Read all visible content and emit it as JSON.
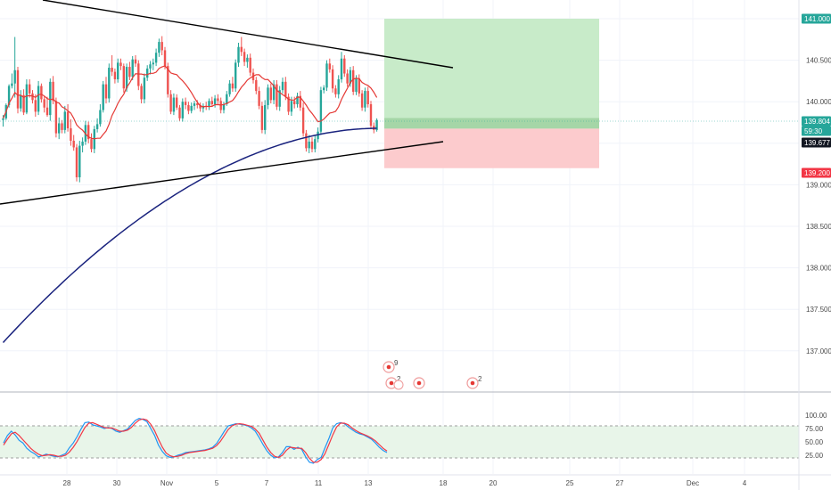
{
  "chart_data": [
    {
      "type": "candlestick",
      "title": "",
      "xlabel": "",
      "ylabel": "",
      "ylim": [
        136.7,
        141.15
      ],
      "grid": true,
      "x_tick_labels": [
        "28",
        "30",
        "Nov",
        "5",
        "7",
        "11",
        "13",
        "18",
        "20",
        "25",
        "27",
        "Dec",
        "4"
      ],
      "y_tick_labels": [
        "137.000",
        "137.500",
        "138.000",
        "138.500",
        "139.000",
        "139.500",
        "140.000",
        "140.500",
        "141.000"
      ],
      "y_ticks": [
        137.0,
        137.5,
        138.0,
        138.5,
        139.0,
        139.5,
        140.0,
        140.5,
        141.0
      ],
      "price_badges": [
        {
          "label": "141.000",
          "value": 141.0,
          "color": "#26a69a"
        },
        {
          "label": "139.804",
          "value": 139.804,
          "color": "#26a69a"
        },
        {
          "label": "59:30",
          "value": 139.73,
          "color": "#26a69a"
        },
        {
          "label": "139.677",
          "value": 139.677,
          "color": "#131722"
        },
        {
          "label": "139.200",
          "value": 139.2,
          "color": "#f23645"
        }
      ],
      "position_tool": {
        "entry": 139.677,
        "take_profit": 141.0,
        "stop_loss": 139.2,
        "profit_color": "#c8ebc9",
        "loss_color": "#fccbcd",
        "current_fill_color": "#a5d6a7"
      },
      "candles_hourly_ohlc": [
        [
          139.78,
          139.84,
          139.7,
          139.8
        ],
        [
          139.8,
          139.98,
          139.78,
          139.96
        ],
        [
          139.96,
          140.21,
          139.93,
          140.19
        ],
        [
          140.19,
          140.34,
          140.16,
          140.22
        ],
        [
          140.22,
          140.78,
          140.05,
          140.38
        ],
        [
          140.38,
          140.42,
          139.86,
          139.92
        ],
        [
          139.92,
          140.14,
          139.88,
          140.08
        ],
        [
          140.08,
          140.15,
          139.84,
          139.87
        ],
        [
          139.87,
          140.27,
          139.85,
          140.21
        ],
        [
          140.21,
          140.27,
          140.05,
          140.1
        ],
        [
          140.1,
          140.14,
          139.98,
          140.02
        ],
        [
          140.02,
          140.09,
          139.82,
          139.88
        ],
        [
          139.88,
          140.25,
          139.84,
          140.19
        ],
        [
          140.19,
          140.22,
          139.99,
          140.03
        ],
        [
          140.03,
          140.07,
          139.87,
          139.93
        ],
        [
          139.93,
          140.06,
          139.82,
          139.84
        ],
        [
          139.84,
          140.28,
          139.77,
          140.24
        ],
        [
          140.24,
          140.31,
          139.97,
          140.01
        ],
        [
          140.01,
          140.05,
          139.57,
          139.62
        ],
        [
          139.62,
          139.81,
          139.55,
          139.74
        ],
        [
          139.74,
          139.78,
          139.62,
          139.66
        ],
        [
          139.66,
          139.95,
          139.62,
          139.88
        ],
        [
          139.88,
          139.97,
          139.64,
          139.68
        ],
        [
          139.68,
          139.79,
          139.47,
          139.53
        ],
        [
          139.53,
          139.6,
          139.41,
          139.45
        ],
        [
          139.45,
          139.49,
          139.04,
          139.09
        ],
        [
          139.09,
          139.53,
          139.03,
          139.47
        ],
        [
          139.47,
          139.57,
          139.39,
          139.52
        ],
        [
          139.52,
          139.77,
          139.48,
          139.72
        ],
        [
          139.72,
          139.76,
          139.5,
          139.55
        ],
        [
          139.55,
          139.62,
          139.39,
          139.43
        ],
        [
          139.43,
          139.71,
          139.38,
          139.67
        ],
        [
          139.67,
          139.8,
          139.63,
          139.73
        ],
        [
          139.73,
          139.97,
          139.7,
          139.9
        ],
        [
          139.9,
          140.25,
          139.87,
          140.21
        ],
        [
          140.21,
          140.3,
          139.98,
          140.04
        ],
        [
          140.04,
          140.46,
          139.99,
          140.41
        ],
        [
          140.41,
          140.56,
          140.31,
          140.36
        ],
        [
          140.36,
          140.4,
          140.22,
          140.27
        ],
        [
          140.27,
          140.52,
          140.23,
          140.47
        ],
        [
          140.47,
          140.52,
          140.38,
          140.43
        ],
        [
          140.43,
          140.46,
          140.11,
          140.16
        ],
        [
          140.16,
          140.46,
          140.12,
          140.42
        ],
        [
          140.42,
          140.48,
          140.26,
          140.3
        ],
        [
          140.3,
          140.55,
          140.26,
          140.51
        ],
        [
          140.51,
          140.56,
          140.42,
          140.46
        ],
        [
          140.46,
          140.5,
          140.14,
          140.19
        ],
        [
          140.19,
          140.22,
          139.98,
          140.03
        ],
        [
          140.03,
          140.34,
          139.98,
          140.29
        ],
        [
          140.29,
          140.44,
          140.25,
          140.4
        ],
        [
          140.4,
          140.49,
          140.33,
          140.45
        ],
        [
          140.45,
          140.52,
          140.38,
          140.47
        ],
        [
          140.47,
          140.64,
          140.43,
          140.59
        ],
        [
          140.59,
          140.76,
          140.54,
          140.72
        ],
        [
          140.72,
          140.79,
          140.56,
          140.62
        ],
        [
          140.62,
          140.66,
          140.39,
          140.43
        ],
        [
          140.43,
          140.47,
          140.05,
          140.09
        ],
        [
          140.09,
          140.14,
          139.85,
          139.88
        ],
        [
          139.88,
          140.1,
          139.84,
          140.05
        ],
        [
          140.05,
          140.09,
          139.9,
          139.93
        ],
        [
          139.93,
          139.96,
          139.77,
          139.8
        ],
        [
          139.8,
          140.04,
          139.76,
          140.0
        ],
        [
          140.0,
          140.05,
          139.91,
          139.96
        ],
        [
          139.96,
          140.0,
          139.85,
          139.89
        ],
        [
          139.89,
          139.99,
          139.86,
          139.95
        ],
        [
          139.95,
          140.01,
          139.9,
          139.98
        ],
        [
          139.98,
          140.02,
          139.92,
          139.96
        ],
        [
          139.96,
          139.99,
          139.88,
          139.92
        ],
        [
          139.92,
          139.98,
          139.87,
          139.95
        ],
        [
          139.95,
          140.0,
          139.9,
          139.94
        ],
        [
          139.94,
          140.04,
          139.9,
          140.01
        ],
        [
          140.01,
          140.06,
          139.94,
          139.97
        ],
        [
          139.97,
          140.08,
          139.93,
          140.04
        ],
        [
          140.04,
          140.09,
          139.97,
          140.01
        ],
        [
          140.01,
          140.05,
          139.86,
          139.9
        ],
        [
          139.9,
          140.0,
          139.86,
          139.97
        ],
        [
          139.97,
          140.13,
          139.95,
          140.09
        ],
        [
          140.09,
          140.26,
          140.06,
          140.22
        ],
        [
          140.22,
          140.3,
          140.12,
          140.16
        ],
        [
          140.16,
          140.51,
          140.12,
          140.47
        ],
        [
          140.47,
          140.71,
          140.42,
          140.66
        ],
        [
          140.66,
          140.78,
          140.55,
          140.6
        ],
        [
          140.6,
          140.64,
          140.43,
          140.48
        ],
        [
          140.48,
          140.57,
          140.41,
          140.53
        ],
        [
          140.53,
          140.58,
          140.31,
          140.35
        ],
        [
          140.35,
          140.4,
          140.22,
          140.26
        ],
        [
          140.26,
          140.3,
          140.09,
          140.13
        ],
        [
          140.13,
          140.18,
          139.91,
          139.95
        ],
        [
          139.95,
          140.0,
          139.62,
          139.66
        ],
        [
          139.66,
          140.02,
          139.61,
          139.96
        ],
        [
          139.96,
          140.21,
          139.91,
          140.17
        ],
        [
          140.17,
          140.22,
          139.98,
          140.02
        ],
        [
          140.02,
          140.26,
          139.97,
          140.21
        ],
        [
          140.21,
          140.26,
          139.9,
          139.94
        ],
        [
          139.94,
          140.19,
          139.89,
          140.14
        ],
        [
          140.14,
          140.29,
          140.1,
          140.24
        ],
        [
          140.24,
          140.3,
          140.02,
          140.06
        ],
        [
          140.06,
          140.1,
          139.84,
          139.88
        ],
        [
          139.88,
          140.06,
          139.83,
          140.01
        ],
        [
          140.01,
          140.06,
          139.92,
          139.97
        ],
        [
          139.97,
          140.11,
          139.93,
          140.07
        ],
        [
          140.07,
          140.13,
          139.89,
          139.93
        ],
        [
          139.93,
          139.99,
          139.58,
          139.62
        ],
        [
          139.62,
          139.66,
          139.4,
          139.44
        ],
        [
          139.44,
          139.6,
          139.38,
          139.52
        ],
        [
          139.52,
          139.57,
          139.39,
          139.43
        ],
        [
          139.43,
          139.59,
          139.39,
          139.55
        ],
        [
          139.55,
          139.69,
          139.51,
          139.64
        ],
        [
          139.64,
          140.18,
          139.6,
          140.14
        ],
        [
          140.14,
          140.2,
          140.1,
          140.17
        ],
        [
          140.17,
          140.5,
          140.13,
          140.46
        ],
        [
          140.46,
          140.52,
          140.35,
          140.39
        ],
        [
          140.39,
          140.44,
          140.11,
          140.16
        ],
        [
          140.16,
          140.2,
          140.05,
          140.09
        ],
        [
          140.09,
          140.32,
          140.04,
          140.27
        ],
        [
          140.27,
          140.6,
          140.23,
          140.52
        ],
        [
          140.52,
          140.56,
          140.3,
          140.34
        ],
        [
          140.34,
          140.39,
          140.18,
          140.22
        ],
        [
          140.22,
          140.42,
          140.18,
          140.38
        ],
        [
          140.38,
          140.43,
          140.08,
          140.12
        ],
        [
          140.12,
          140.32,
          140.08,
          140.28
        ],
        [
          140.28,
          140.33,
          140.06,
          140.1
        ],
        [
          140.1,
          140.14,
          139.89,
          139.93
        ],
        [
          139.93,
          140.17,
          139.88,
          140.13
        ],
        [
          140.13,
          140.18,
          139.93,
          139.97
        ],
        [
          139.97,
          140.01,
          139.67,
          139.71
        ],
        [
          139.71,
          139.75,
          139.62,
          139.66
        ],
        [
          139.66,
          139.8,
          139.64,
          139.78
        ]
      ]
    },
    {
      "type": "line",
      "title": "",
      "ylim": [
        0,
        100
      ],
      "y_tick_labels": [
        "25.00",
        "50.00",
        "75.00",
        "100.00"
      ],
      "y_ticks": [
        25,
        50,
        75,
        100
      ],
      "band": [
        20,
        80
      ],
      "band_color": "#e8f5e9",
      "series": [
        {
          "color": "#2196f3",
          "values": [
            48,
            62,
            70,
            63,
            53,
            48,
            38,
            32,
            28,
            22,
            24,
            27,
            25,
            23,
            22,
            25,
            28,
            39,
            48,
            60,
            74,
            86,
            87,
            82,
            80,
            78,
            75,
            77,
            75,
            70,
            68,
            71,
            74,
            82,
            90,
            94,
            92,
            88,
            75,
            62,
            44,
            32,
            24,
            21,
            22,
            25,
            27,
            30,
            31,
            32,
            33,
            34,
            35,
            37,
            40,
            47,
            58,
            70,
            80,
            82,
            84,
            83,
            82,
            80,
            76,
            70,
            58,
            45,
            33,
            25,
            20,
            22,
            30,
            41,
            41,
            36,
            40,
            36,
            22,
            12,
            10,
            17,
            21,
            39,
            56,
            76,
            84,
            86,
            84,
            78,
            73,
            68,
            65,
            63,
            59,
            55,
            48,
            40,
            34,
            30
          ]
        },
        {
          "color": "#f23645",
          "values": [
            44,
            55,
            65,
            68,
            62,
            54,
            46,
            38,
            32,
            27,
            24,
            25,
            26,
            25,
            23,
            23,
            25,
            31,
            40,
            51,
            64,
            77,
            85,
            86,
            83,
            80,
            77,
            76,
            76,
            73,
            70,
            70,
            72,
            77,
            85,
            91,
            93,
            91,
            83,
            71,
            55,
            40,
            29,
            24,
            22,
            23,
            25,
            28,
            30,
            31,
            32,
            33,
            34,
            36,
            38,
            43,
            51,
            62,
            73,
            80,
            83,
            84,
            83,
            81,
            79,
            74,
            66,
            53,
            40,
            30,
            23,
            21,
            25,
            34,
            40,
            39,
            38,
            38,
            30,
            19,
            12,
            12,
            17,
            28,
            45,
            63,
            78,
            85,
            85,
            82,
            76,
            71,
            67,
            64,
            61,
            57,
            52,
            45,
            38,
            33
          ]
        }
      ]
    }
  ],
  "axis": {
    "x_ticks": [
      "28",
      "30",
      "Nov",
      "5",
      "7",
      "11",
      "13",
      "18",
      "20",
      "25",
      "27",
      "Dec",
      "4"
    ],
    "y_ticks_main": [
      "141.000",
      "140.500",
      "140.000",
      "139.500",
      "139.000",
      "138.500",
      "138.000",
      "137.500",
      "137.000"
    ],
    "y_ticks_osc": [
      "100.00",
      "75.00",
      "50.00",
      "25.00"
    ]
  },
  "price_labels": {
    "tp": "141.000",
    "last": "139.804",
    "countdown": "59:30",
    "entry": "139.677",
    "sl": "139.200"
  },
  "events": [
    {
      "icon": "event-flag-icon",
      "count": "9"
    },
    {
      "icon": "event-flag-icon",
      "count": "2"
    },
    {
      "icon": "event-flag-icon",
      "count": ""
    },
    {
      "icon": "event-flag-icon",
      "count": "2"
    }
  ],
  "colors": {
    "up": "#26a69a",
    "down": "#ef5350",
    "ma_short": "#e53935",
    "ma_long": "#1a237e",
    "trend_line": "#000000",
    "grid": "#f0f3fa"
  }
}
